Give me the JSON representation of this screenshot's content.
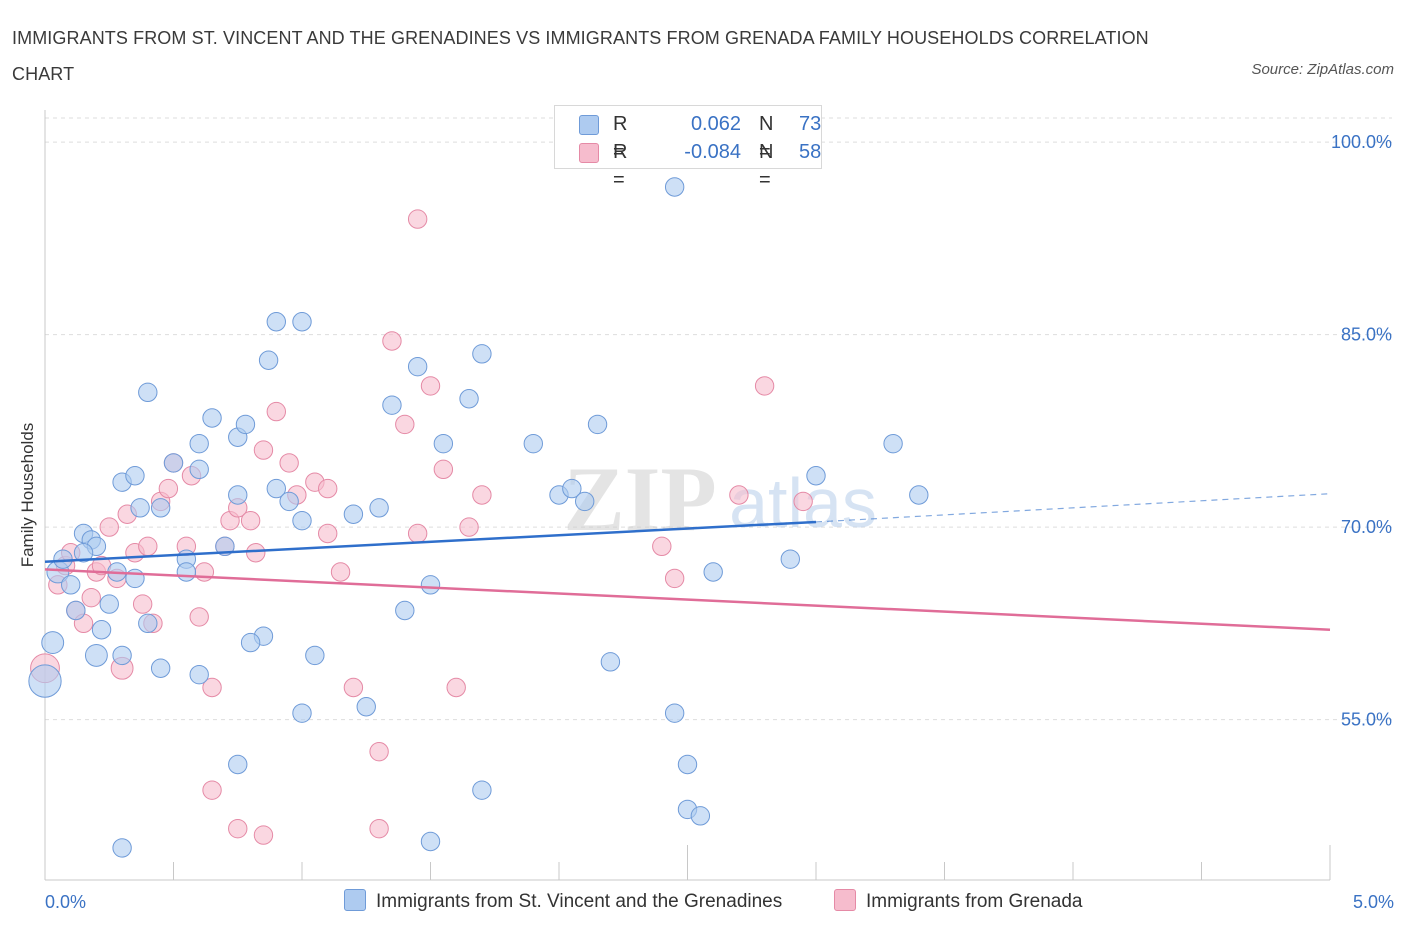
{
  "title": "IMMIGRANTS FROM ST. VINCENT AND THE GRENADINES VS IMMIGRANTS FROM GRENADA FAMILY HOUSEHOLDS CORRELATION CHART",
  "source": "Source: ZipAtlas.com",
  "watermark": {
    "zip": "ZIP",
    "atlas": "atlas"
  },
  "legend": {
    "series1": {
      "r_label": "R =",
      "r_value": "0.062",
      "n_label": "N =",
      "n_value": "73"
    },
    "series2": {
      "r_label": "R =",
      "r_value": "-0.084",
      "n_label": "N =",
      "n_value": "58"
    }
  },
  "colors": {
    "blue_fill": "#aecbf0",
    "blue_stroke": "#6f9bd8",
    "blue_line": "#2f6fcb",
    "pink_fill": "#f6bccd",
    "pink_stroke": "#e58aa6",
    "pink_line": "#e06d98",
    "tick_text": "#3a72c4",
    "grid": "#dddddd"
  },
  "chart_data": {
    "type": "scatter",
    "title": "IMMIGRANTS FROM ST. VINCENT AND THE GRENADINES VS IMMIGRANTS FROM GRENADA FAMILY HOUSEHOLDS CORRELATION CHART",
    "xlabel": "",
    "ylabel": "Family Households",
    "xlim": [
      0,
      5
    ],
    "ylim": [
      42.5,
      102.5
    ],
    "x_tick_labels": {
      "left": "0.0%",
      "right": "5.0%"
    },
    "y_ticks": [
      {
        "value": 100,
        "label": "100.0%"
      },
      {
        "value": 85,
        "label": "85.0%"
      },
      {
        "value": 70,
        "label": "70.0%"
      },
      {
        "value": 55,
        "label": "55.0%"
      }
    ],
    "grid": true,
    "legend_position": "top-center",
    "series": [
      {
        "name": "Immigrants from St. Vincent and the Grenadines",
        "color": "#aecbf0",
        "r": 0.062,
        "n": 73,
        "trend": {
          "x0": 0.0,
          "y0": 67.3,
          "x1": 3.0,
          "y1": 70.4,
          "dash_x1": 5.0,
          "dash_y1": 72.6
        },
        "points": [
          [
            0.0,
            58.0,
            18
          ],
          [
            0.03,
            61.0,
            12
          ],
          [
            0.05,
            66.5,
            12
          ],
          [
            0.07,
            67.5,
            10
          ],
          [
            0.1,
            65.5,
            10
          ],
          [
            0.12,
            63.5,
            10
          ],
          [
            0.15,
            69.5,
            10
          ],
          [
            0.18,
            69.0,
            10
          ],
          [
            0.2,
            68.5,
            10
          ],
          [
            0.15,
            68.0,
            10
          ],
          [
            0.25,
            64.0,
            10
          ],
          [
            0.22,
            62.0,
            10
          ],
          [
            0.3,
            60.0,
            10
          ],
          [
            0.35,
            66.0,
            10
          ],
          [
            0.4,
            62.5,
            10
          ],
          [
            0.45,
            59.0,
            10
          ],
          [
            0.2,
            60.0,
            12
          ],
          [
            0.28,
            66.5,
            10
          ],
          [
            0.3,
            73.5,
            10
          ],
          [
            0.35,
            74.0,
            10
          ],
          [
            0.45,
            71.5,
            10
          ],
          [
            0.5,
            75.0,
            10
          ],
          [
            0.55,
            67.5,
            10
          ],
          [
            0.4,
            80.5,
            10
          ],
          [
            0.37,
            71.5,
            10
          ],
          [
            0.6,
            74.5,
            10
          ],
          [
            0.65,
            78.5,
            10
          ],
          [
            0.75,
            72.5,
            10
          ],
          [
            0.6,
            76.5,
            10
          ],
          [
            0.7,
            68.5,
            10
          ],
          [
            0.55,
            66.5,
            10
          ],
          [
            0.75,
            77.0,
            10
          ],
          [
            0.85,
            61.5,
            10
          ],
          [
            0.8,
            61.0,
            10
          ],
          [
            0.9,
            73.0,
            10
          ],
          [
            0.95,
            72.0,
            10
          ],
          [
            1.0,
            70.5,
            10
          ],
          [
            1.05,
            60.0,
            10
          ],
          [
            0.78,
            78.0,
            10
          ],
          [
            0.87,
            83.0,
            10
          ],
          [
            0.9,
            86.0,
            10
          ],
          [
            1.0,
            86.0,
            10
          ],
          [
            1.2,
            71.0,
            10
          ],
          [
            1.25,
            56.0,
            10
          ],
          [
            1.35,
            79.5,
            10
          ],
          [
            1.45,
            82.5,
            10
          ],
          [
            1.55,
            76.5,
            10
          ],
          [
            1.65,
            80.0,
            10
          ],
          [
            1.7,
            83.5,
            10
          ],
          [
            1.5,
            65.5,
            10
          ],
          [
            1.4,
            63.5,
            10
          ],
          [
            1.3,
            71.5,
            10
          ],
          [
            0.6,
            58.5,
            10
          ],
          [
            0.75,
            51.5,
            10
          ],
          [
            1.0,
            55.5,
            10
          ],
          [
            1.5,
            45.5,
            10
          ],
          [
            1.7,
            49.5,
            10
          ],
          [
            1.9,
            76.5,
            10
          ],
          [
            2.0,
            72.5,
            10
          ],
          [
            2.05,
            73.0,
            10
          ],
          [
            2.1,
            72.0,
            10
          ],
          [
            2.15,
            78.0,
            10
          ],
          [
            2.2,
            59.5,
            10
          ],
          [
            2.45,
            55.5,
            10
          ],
          [
            2.5,
            51.5,
            10
          ],
          [
            2.5,
            48.0,
            10
          ],
          [
            2.55,
            47.5,
            10
          ],
          [
            2.6,
            66.5,
            10
          ],
          [
            2.9,
            67.5,
            10
          ],
          [
            3.0,
            74.0,
            10
          ],
          [
            3.3,
            76.5,
            10
          ],
          [
            3.4,
            72.5,
            10
          ],
          [
            2.45,
            96.5,
            10
          ],
          [
            0.3,
            45.0,
            10
          ]
        ]
      },
      {
        "name": "Immigrants from Grenada",
        "color": "#f6bccd",
        "r": -0.084,
        "n": 58,
        "trend": {
          "x0": 0.0,
          "y0": 66.7,
          "x1": 5.0,
          "y1": 62.0
        },
        "points": [
          [
            0.0,
            59.0,
            16
          ],
          [
            0.05,
            65.5,
            10
          ],
          [
            0.08,
            67.0,
            10
          ],
          [
            0.1,
            68.0,
            10
          ],
          [
            0.12,
            63.5,
            10
          ],
          [
            0.15,
            62.5,
            10
          ],
          [
            0.18,
            64.5,
            10
          ],
          [
            0.2,
            66.5,
            10
          ],
          [
            0.22,
            67.0,
            10
          ],
          [
            0.25,
            70.0,
            10
          ],
          [
            0.28,
            66.0,
            10
          ],
          [
            0.3,
            59.0,
            12
          ],
          [
            0.32,
            71.0,
            10
          ],
          [
            0.35,
            68.0,
            10
          ],
          [
            0.38,
            64.0,
            10
          ],
          [
            0.4,
            68.5,
            10
          ],
          [
            0.42,
            62.5,
            10
          ],
          [
            0.45,
            72.0,
            10
          ],
          [
            0.48,
            73.0,
            10
          ],
          [
            0.5,
            75.0,
            10
          ],
          [
            0.55,
            68.5,
            10
          ],
          [
            0.57,
            74.0,
            10
          ],
          [
            0.6,
            63.0,
            10
          ],
          [
            0.62,
            66.5,
            10
          ],
          [
            0.65,
            57.5,
            10
          ],
          [
            0.7,
            68.5,
            10
          ],
          [
            0.72,
            70.5,
            10
          ],
          [
            0.75,
            71.5,
            10
          ],
          [
            0.8,
            70.5,
            10
          ],
          [
            0.82,
            68.0,
            10
          ],
          [
            0.85,
            76.0,
            10
          ],
          [
            0.9,
            79.0,
            10
          ],
          [
            0.95,
            75.0,
            10
          ],
          [
            0.98,
            72.5,
            10
          ],
          [
            1.05,
            73.5,
            10
          ],
          [
            1.1,
            69.5,
            10
          ],
          [
            1.1,
            73.0,
            10
          ],
          [
            1.15,
            66.5,
            10
          ],
          [
            1.2,
            57.5,
            10
          ],
          [
            1.3,
            52.5,
            10
          ],
          [
            1.35,
            84.5,
            10
          ],
          [
            1.4,
            78.0,
            10
          ],
          [
            1.45,
            69.5,
            10
          ],
          [
            1.5,
            81.0,
            10
          ],
          [
            1.55,
            74.5,
            10
          ],
          [
            1.6,
            57.5,
            10
          ],
          [
            1.65,
            70.0,
            10
          ],
          [
            1.7,
            72.5,
            10
          ],
          [
            0.65,
            49.5,
            10
          ],
          [
            0.75,
            46.5,
            10
          ],
          [
            0.85,
            46.0,
            10
          ],
          [
            1.3,
            46.5,
            10
          ],
          [
            1.45,
            94.0,
            10
          ],
          [
            2.4,
            68.5,
            10
          ],
          [
            2.45,
            66.0,
            10
          ],
          [
            2.7,
            72.5,
            10
          ],
          [
            2.8,
            81.0,
            10
          ],
          [
            2.95,
            72.0,
            10
          ]
        ]
      }
    ]
  }
}
